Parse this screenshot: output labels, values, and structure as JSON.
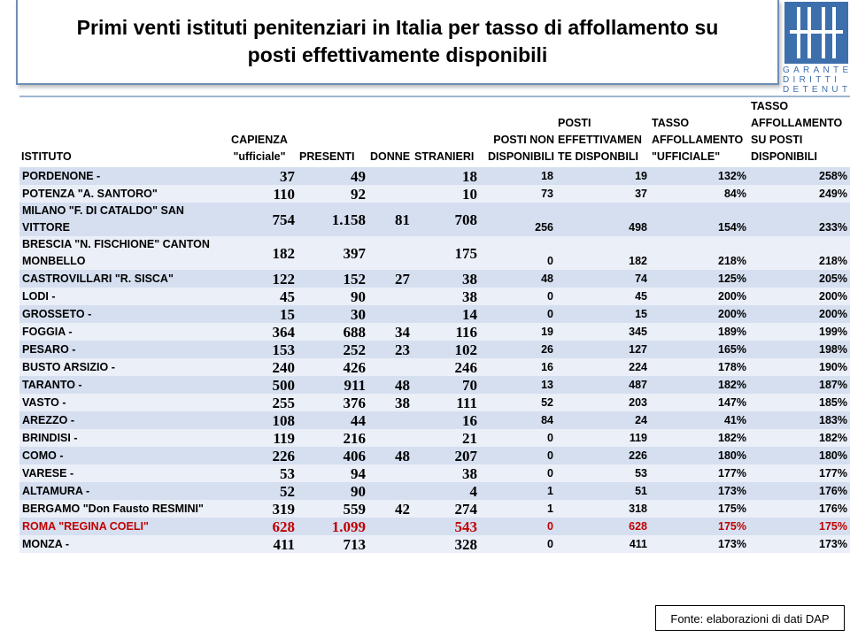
{
  "title": "Primi venti istituti penitenziari in Italia per tasso di affollamento su posti effettivamente disponibili",
  "logo": {
    "line1": "GARANTE",
    "line2": "DIRITTI",
    "line3": "DETENUTI",
    "color": "#3e6fad"
  },
  "headers": {
    "istituto": "ISTITUTO",
    "capienza": "CAPIENZA \"ufficiale\"",
    "presenti": "PRESENTI",
    "donne": "DONNE",
    "stranieri": "STRANIERI",
    "posti_non": "POSTI NON DISPONIBILI",
    "posti_eff": "POSTI EFFETTIVAMEN TE DISPONBILI",
    "tasso_uff": "TASSO AFFOLLAMENTO \"UFFICIALE\"",
    "tasso_disp": "TASSO AFFOLLAMENTO SU POSTI DISPONIBILI"
  },
  "rows": [
    {
      "istituto": "PORDENONE -",
      "capienza": "37",
      "presenti": "49",
      "donne": "",
      "stranieri": "18",
      "posti_non": "18",
      "posti_eff": "19",
      "tasso_uff": "132%",
      "tasso_disp": "258%"
    },
    {
      "istituto": "POTENZA \"A. SANTORO\"",
      "capienza": "110",
      "presenti": "92",
      "donne": "",
      "stranieri": "10",
      "posti_non": "73",
      "posti_eff": "37",
      "tasso_uff": "84%",
      "tasso_disp": "249%"
    },
    {
      "istituto": "MILANO \"F. DI CATALDO\" SAN VITTORE",
      "capienza": "754",
      "presenti": "1.158",
      "donne": "81",
      "stranieri": "708",
      "posti_non": "256",
      "posti_eff": "498",
      "tasso_uff": "154%",
      "tasso_disp": "233%"
    },
    {
      "istituto": "BRESCIA \"N. FISCHIONE\" CANTON MONBELLO",
      "capienza": "182",
      "presenti": "397",
      "donne": "",
      "stranieri": "175",
      "posti_non": "0",
      "posti_eff": "182",
      "tasso_uff": "218%",
      "tasso_disp": "218%"
    },
    {
      "istituto": "CASTROVILLARI \"R. SISCA\"",
      "capienza": "122",
      "presenti": "152",
      "donne": "27",
      "stranieri": "38",
      "posti_non": "48",
      "posti_eff": "74",
      "tasso_uff": "125%",
      "tasso_disp": "205%"
    },
    {
      "istituto": "LODI -",
      "capienza": "45",
      "presenti": "90",
      "donne": "",
      "stranieri": "38",
      "posti_non": "0",
      "posti_eff": "45",
      "tasso_uff": "200%",
      "tasso_disp": "200%"
    },
    {
      "istituto": "GROSSETO -",
      "capienza": "15",
      "presenti": "30",
      "donne": "",
      "stranieri": "14",
      "posti_non": "0",
      "posti_eff": "15",
      "tasso_uff": "200%",
      "tasso_disp": "200%"
    },
    {
      "istituto": "FOGGIA -",
      "capienza": "364",
      "presenti": "688",
      "donne": "34",
      "stranieri": "116",
      "posti_non": "19",
      "posti_eff": "345",
      "tasso_uff": "189%",
      "tasso_disp": "199%"
    },
    {
      "istituto": "PESARO -",
      "capienza": "153",
      "presenti": "252",
      "donne": "23",
      "stranieri": "102",
      "posti_non": "26",
      "posti_eff": "127",
      "tasso_uff": "165%",
      "tasso_disp": "198%"
    },
    {
      "istituto": "BUSTO ARSIZIO -",
      "capienza": "240",
      "presenti": "426",
      "donne": "",
      "stranieri": "246",
      "posti_non": "16",
      "posti_eff": "224",
      "tasso_uff": "178%",
      "tasso_disp": "190%"
    },
    {
      "istituto": "TARANTO -",
      "capienza": "500",
      "presenti": "911",
      "donne": "48",
      "stranieri": "70",
      "posti_non": "13",
      "posti_eff": "487",
      "tasso_uff": "182%",
      "tasso_disp": "187%"
    },
    {
      "istituto": "VASTO -",
      "capienza": "255",
      "presenti": "376",
      "donne": "38",
      "stranieri": "111",
      "posti_non": "52",
      "posti_eff": "203",
      "tasso_uff": "147%",
      "tasso_disp": "185%"
    },
    {
      "istituto": "AREZZO -",
      "capienza": "108",
      "presenti": "44",
      "donne": "",
      "stranieri": "16",
      "posti_non": "84",
      "posti_eff": "24",
      "tasso_uff": "41%",
      "tasso_disp": "183%"
    },
    {
      "istituto": "BRINDISI -",
      "capienza": "119",
      "presenti": "216",
      "donne": "",
      "stranieri": "21",
      "posti_non": "0",
      "posti_eff": "119",
      "tasso_uff": "182%",
      "tasso_disp": "182%"
    },
    {
      "istituto": "COMO -",
      "capienza": "226",
      "presenti": "406",
      "donne": "48",
      "stranieri": "207",
      "posti_non": "0",
      "posti_eff": "226",
      "tasso_uff": "180%",
      "tasso_disp": "180%"
    },
    {
      "istituto": "VARESE -",
      "capienza": "53",
      "presenti": "94",
      "donne": "",
      "stranieri": "38",
      "posti_non": "0",
      "posti_eff": "53",
      "tasso_uff": "177%",
      "tasso_disp": "177%"
    },
    {
      "istituto": "ALTAMURA -",
      "capienza": "52",
      "presenti": "90",
      "donne": "",
      "stranieri": "4",
      "posti_non": "1",
      "posti_eff": "51",
      "tasso_uff": "173%",
      "tasso_disp": "176%"
    },
    {
      "istituto": "BERGAMO \"Don Fausto RESMINI\"",
      "capienza": "319",
      "presenti": "559",
      "donne": "42",
      "stranieri": "274",
      "posti_non": "1",
      "posti_eff": "318",
      "tasso_uff": "175%",
      "tasso_disp": "176%"
    },
    {
      "istituto": "ROMA \"REGINA COELI\"",
      "capienza": "628",
      "presenti": "1.099",
      "donne": "",
      "stranieri": "543",
      "posti_non": "0",
      "posti_eff": "628",
      "tasso_uff": "175%",
      "tasso_disp": "175%"
    },
    {
      "istituto": "MONZA -",
      "capienza": "411",
      "presenti": "713",
      "donne": "",
      "stranieri": "328",
      "posti_non": "0",
      "posti_eff": "411",
      "tasso_uff": "173%",
      "tasso_disp": "173%"
    }
  ],
  "highlight_row": 18,
  "colors": {
    "row_dark": "#d5dff0",
    "row_light": "#ebeff8",
    "highlight": "#c00000",
    "border": "#6e8fb5"
  },
  "source": "Fonte: elaborazioni di dati DAP"
}
